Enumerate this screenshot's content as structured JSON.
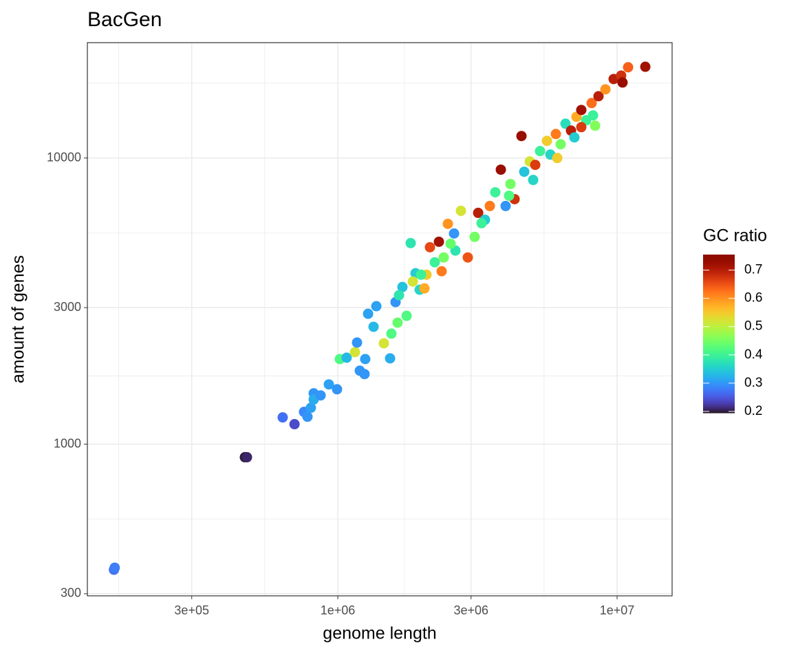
{
  "chart_data": {
    "type": "scatter",
    "title": "BacGen",
    "x_label": "genome length",
    "y_label": "amount of genes",
    "x_scale": "log",
    "y_scale": "log",
    "grid": true,
    "xlim": [
      126900,
      15740000
    ],
    "ylim": [
      295,
      25300
    ],
    "xticks": [
      {
        "value": 300000,
        "label": "3e+05"
      },
      {
        "value": 1000000,
        "label": "1e+06"
      },
      {
        "value": 3000000,
        "label": "3e+06"
      },
      {
        "value": 10000000,
        "label": "1e+07"
      }
    ],
    "yticks": [
      300,
      1000,
      3000,
      10000
    ],
    "x": [
      158000,
      159000,
      465000,
      473000,
      635000,
      700000,
      757000,
      779000,
      801000,
      820000,
      820000,
      868000,
      929000,
      994000,
      1017000,
      1076000,
      1152000,
      1172000,
      1199000,
      1254000,
      1247000,
      1343000,
      1284000,
      1374000,
      1462000,
      1539000,
      1556000,
      1637000,
      1764000,
      1824000,
      1964000,
      1898000,
      2078000,
      2225000,
      2354000,
      2302000,
      2478000,
      2637000,
      2760000,
      2921000,
      3091000,
      3182000,
      3366000,
      3502000,
      3664000,
      3835000,
      3990000,
      4152000,
      4296000,
      4546000,
      4651000,
      4867000,
      5093000,
      5300000,
      5609000,
      5769000,
      6037000,
      6281000,
      6536000,
      6839000,
      7155000,
      7445000,
      7747000,
      8343000,
      8108000,
      8580000,
      9082000,
      9721000,
      10340000,
      10950000,
      12620000,
      10460000,
      2138000,
      2043000,
      1704000,
      1610000,
      2608000,
      3272000,
      4105000,
      5007000,
      6107000,
      7034000,
      8201000,
      7445000,
      2535000,
      2395000,
      1986000,
      1856000,
      1656000
    ],
    "y": [
      364,
      370,
      900,
      900,
      1240,
      1174,
      1296,
      1247,
      1340,
      1505,
      1432,
      1480,
      1617,
      1555,
      1983,
      2005,
      2096,
      2264,
      1806,
      1983,
      1757,
      2571,
      2855,
      3034,
      2251,
      1994,
      2433,
      2658,
      2808,
      5041,
      3464,
      3955,
      3911,
      4320,
      4021,
      5098,
      5886,
      4748,
      6537,
      4491,
      5301,
      6430,
      6084,
      6795,
      7589,
      9105,
      6795,
      8110,
      7181,
      11934,
      8954,
      9727,
      9462,
      10570,
      11480,
      10280,
      12130,
      11170,
      13180,
      12470,
      13930,
      14720,
      13550,
      12970,
      15560,
      16440,
      17380,
      18880,
      19410,
      20750,
      20840,
      18360,
      4876,
      3502,
      3541,
      3136,
      5447,
      5918,
      7382,
      8382,
      10000,
      11800,
      14090,
      12820,
      5013,
      4491,
      3911,
      3700,
      3314
    ],
    "color_values": [
      0.27,
      0.28,
      0.2,
      0.21,
      0.27,
      0.24,
      0.29,
      0.3,
      0.31,
      0.3,
      0.32,
      0.3,
      0.31,
      0.3,
      0.42,
      0.33,
      0.52,
      0.3,
      0.3,
      0.31,
      0.3,
      0.33,
      0.31,
      0.31,
      0.52,
      0.32,
      0.42,
      0.44,
      0.42,
      0.38,
      0.36,
      0.35,
      0.55,
      0.4,
      0.62,
      0.72,
      0.6,
      0.38,
      0.52,
      0.65,
      0.45,
      0.7,
      0.35,
      0.62,
      0.4,
      0.73,
      0.3,
      0.45,
      0.68,
      0.73,
      0.34,
      0.52,
      0.67,
      0.4,
      0.55,
      0.36,
      0.62,
      0.45,
      0.37,
      0.7,
      0.58,
      0.72,
      0.4,
      0.46,
      0.63,
      0.7,
      0.6,
      0.7,
      0.68,
      0.64,
      0.72,
      0.73,
      0.66,
      0.58,
      0.34,
      0.3,
      0.3,
      0.4,
      0.42,
      0.36,
      0.55,
      0.35,
      0.4,
      0.67,
      0.44,
      0.45,
      0.4,
      0.52,
      0.38
    ],
    "colorbar": {
      "title": "GC ratio",
      "colormap": "turbo",
      "lim": [
        0.195,
        0.755
      ],
      "ticks": [
        0.2,
        0.3,
        0.4,
        0.5,
        0.6,
        0.7
      ]
    }
  }
}
